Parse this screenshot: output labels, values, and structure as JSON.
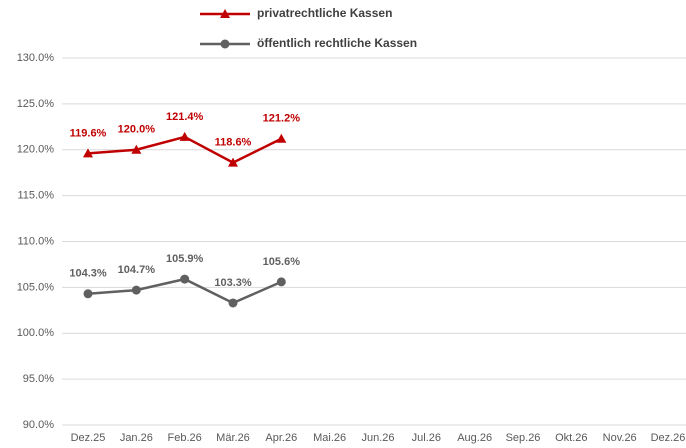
{
  "chart_data": {
    "type": "line",
    "categories": [
      "Dez.25",
      "Jan.26",
      "Feb.26",
      "Mär.26",
      "Apr.26",
      "Mai.26",
      "Jun.26",
      "Jul.26",
      "Aug.26",
      "Sep.26",
      "Okt.26",
      "Nov.26",
      "Dez.26"
    ],
    "series": [
      {
        "name": "privatrechtliche Kassen",
        "color": "#c00000",
        "marker": "triangle",
        "values": [
          119.6,
          120.0,
          121.4,
          118.6,
          121.2,
          null,
          null,
          null,
          null,
          null,
          null,
          null,
          null
        ],
        "value_labels": [
          "119.6%",
          "120.0%",
          "121.4%",
          "118.6%",
          "121.2%",
          null,
          null,
          null,
          null,
          null,
          null,
          null,
          null
        ]
      },
      {
        "name": "öffentlich rechtliche Kassen",
        "color": "#606060",
        "marker": "circle",
        "values": [
          104.3,
          104.7,
          105.9,
          103.3,
          105.6,
          null,
          null,
          null,
          null,
          null,
          null,
          null,
          null
        ],
        "value_labels": [
          "104.3%",
          "104.7%",
          "105.9%",
          "103.3%",
          "105.6%",
          null,
          null,
          null,
          null,
          null,
          null,
          null,
          null
        ]
      }
    ],
    "ylim": [
      90,
      130
    ],
    "yticks": [
      {
        "value": 90,
        "label": "90.0%"
      },
      {
        "value": 95,
        "label": "95.0%"
      },
      {
        "value": 100,
        "label": "100.0%"
      },
      {
        "value": 105,
        "label": "105.0%"
      },
      {
        "value": 110,
        "label": "110.0%"
      },
      {
        "value": 115,
        "label": "115.0%"
      },
      {
        "value": 120,
        "label": "120.0%"
      },
      {
        "value": 125,
        "label": "125.0%"
      },
      {
        "value": 130,
        "label": "130.0%"
      }
    ],
    "grid": true,
    "legend": "top"
  }
}
